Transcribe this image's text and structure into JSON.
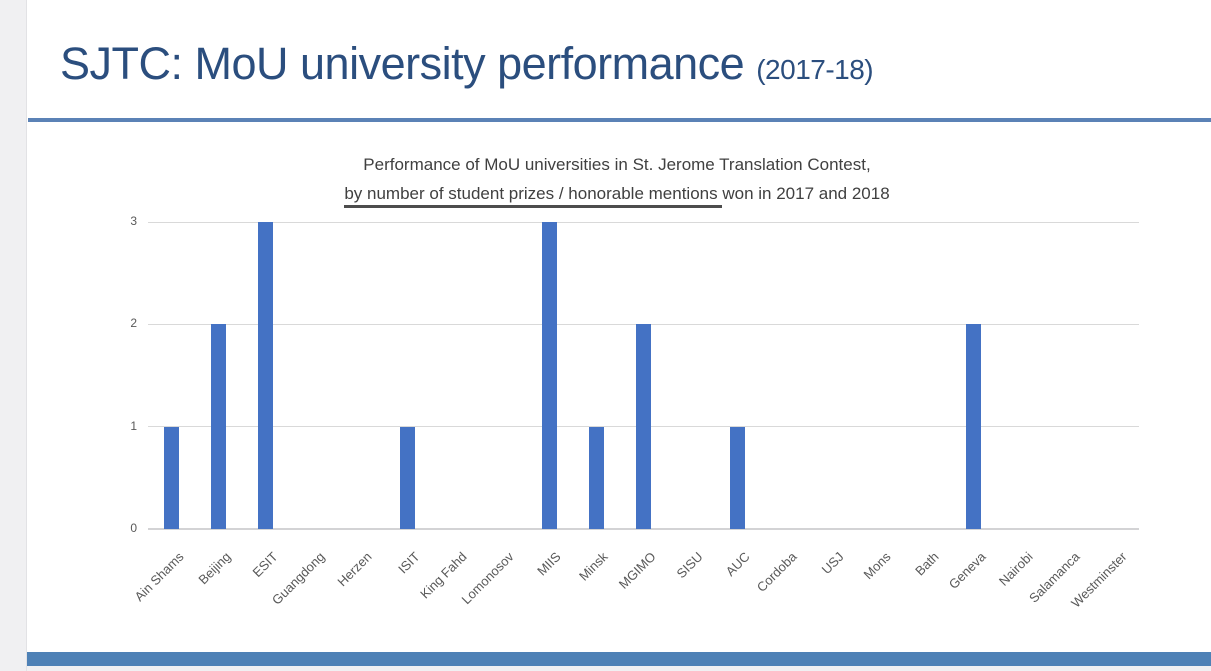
{
  "slide": {
    "title": "SJTC: MoU university performance ",
    "title_suffix": "(2017-18)",
    "accent_color": "#2b4e7e",
    "rule_color": "#5b82b6",
    "footer_color": "#4e81b6"
  },
  "chart_data": {
    "type": "bar",
    "title_line1": "Performance of MoU universities in St. Jerome Translation Contest,",
    "title_line2_underlined": "by number of student prizes / honorable mentions ",
    "title_line2_rest": "won in 2017 and 2018",
    "categories": [
      "Ain Shams",
      "Beijing",
      "ESIT",
      "Guangdong",
      "Herzen",
      "ISIT",
      "King Fahd",
      "Lomonosov",
      "MIIS",
      "Minsk",
      "MGIMO",
      "SISU",
      "AUC",
      "Cordoba",
      "USJ",
      "Mons",
      "Bath",
      "Geneva",
      "Nairobi",
      "Salamanca",
      "Westminster"
    ],
    "values": [
      1,
      2,
      3,
      0,
      0,
      1,
      0,
      0,
      3,
      1,
      2,
      0,
      1,
      0,
      0,
      0,
      0,
      2,
      0,
      0,
      0
    ],
    "y_ticks": [
      0,
      1,
      2,
      3
    ],
    "ylim": [
      0,
      3
    ],
    "xlabel": "",
    "ylabel": "",
    "grid": true,
    "legend": false,
    "bar_color": "#4472c4",
    "gridline_color": "#d9d9d9",
    "axis_label_color": "#595959",
    "title_color": "#404040"
  }
}
